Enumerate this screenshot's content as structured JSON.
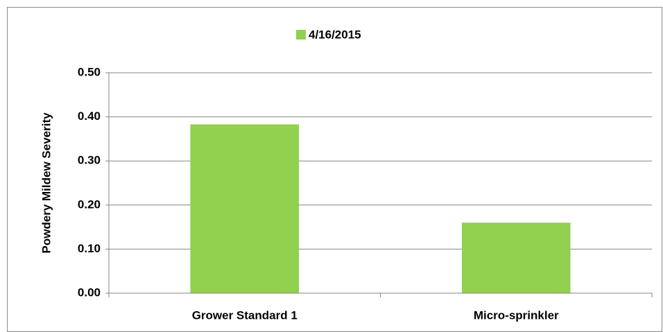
{
  "chart_data": {
    "type": "bar",
    "categories": [
      "Grower Standard 1",
      "Micro-sprinkler"
    ],
    "series": [
      {
        "name": "4/16/2015",
        "color": "#92d050",
        "values": [
          0.383,
          0.16
        ]
      }
    ],
    "ylabel": "Powdery Mildew Severity",
    "ylim": [
      0,
      0.5
    ],
    "yticks": [
      {
        "value": 0,
        "label": "0.00"
      },
      {
        "value": 0.1,
        "label": "0.10"
      },
      {
        "value": 0.2,
        "label": "0.20"
      },
      {
        "value": 0.3,
        "label": "0.30"
      },
      {
        "value": 0.4,
        "label": "0.40"
      },
      {
        "value": 0.5,
        "label": "0.50"
      }
    ],
    "grid": true,
    "legend": "top"
  }
}
